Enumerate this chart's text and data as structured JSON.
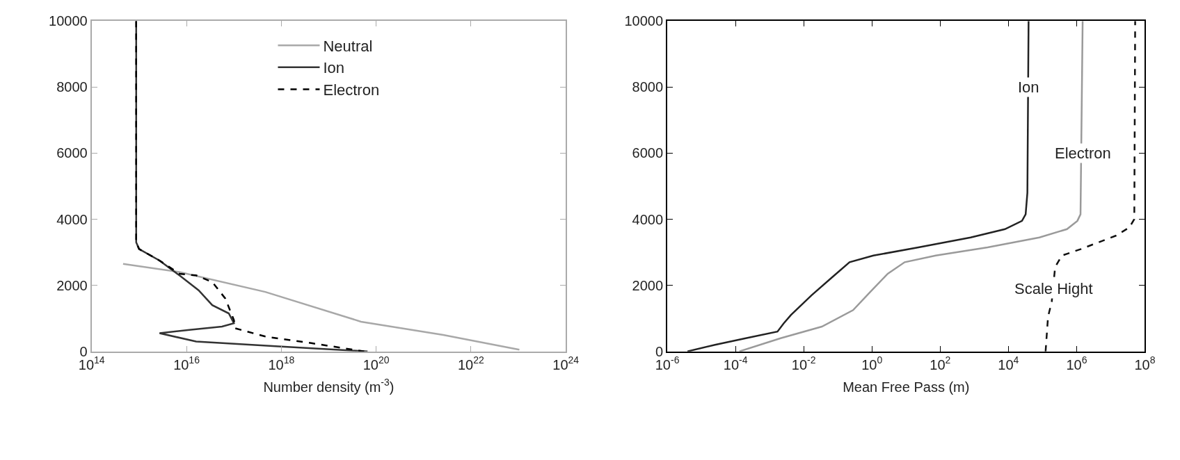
{
  "chart_data": [
    {
      "type": "line",
      "xlabel": "Number density (m$^{-3}$)",
      "log": "x",
      "xlim": [
        100000000000000.0,
        1e+24
      ],
      "ylim": [
        0,
        10000
      ],
      "xticks": [
        {
          "value": 100000000000000.0,
          "label": "10$^{14}$"
        },
        {
          "value": 1e+16,
          "label": "10$^{16}$"
        },
        {
          "value": 1e+18,
          "label": "10$^{18}$"
        },
        {
          "value": 1e+20,
          "label": "10$^{20}$"
        },
        {
          "value": 1e+22,
          "label": "10$^{22}$"
        },
        {
          "value": 1e+24,
          "label": "10$^{24}$"
        }
      ],
      "yticks": [
        0,
        2000,
        4000,
        6000,
        8000,
        10000
      ],
      "grid": false,
      "legend": "top",
      "series": [
        {
          "name": "Neutral",
          "color": "#a8a8a8",
          "line_style": "solid",
          "x": [
            460000000000000.0,
            7100000000000000.0,
            4.6e+17,
            4.8e+19,
            2.6e+21,
            1.05e+23
          ],
          "values": [
            2650,
            2400,
            1800,
            900,
            500,
            50
          ]
        },
        {
          "name": "Ion",
          "color": "#333333",
          "line_style": "solid",
          "x": [
            870000000000000.0,
            870000000000000.0,
            1000000000000000.0,
            2700000000000000.0,
            7100000000000000.0,
            1.8e+16,
            3.5e+16,
            7.8e+16,
            1e+17,
            5.6e+16,
            1.15e+16,
            2700000000000000.0,
            1.6e+16,
            8.7e+17,
            6.6e+19
          ],
          "values": [
            10000,
            3300,
            3100,
            2750,
            2300,
            1850,
            1400,
            1150,
            850,
            750,
            650,
            550,
            300,
            150,
            0
          ]
        },
        {
          "name": "Electron",
          "color": "#000000",
          "line_style": "dashed",
          "x": [
            870000000000000.0,
            870000000000000.0,
            1000000000000000.0,
            2700000000000000.0,
            7100000000000000.0,
            1.6e+16,
            3.5e+16,
            6.6e+16,
            1e+17,
            1.07e+17,
            4.6e+17,
            4.3e+18,
            5.6e+19
          ],
          "values": [
            10000,
            3300,
            3100,
            2750,
            2350,
            2300,
            2100,
            1600,
            950,
            700,
            450,
            250,
            0
          ]
        }
      ]
    },
    {
      "type": "line",
      "xlabel": "Mean Free Pass (m)",
      "log": "x",
      "xlim": [
        1e-06,
        100000000.0
      ],
      "ylim": [
        0,
        10000
      ],
      "xticks": [
        {
          "value": 1e-06,
          "label": "10$^{-6}$"
        },
        {
          "value": 0.0001,
          "label": "10$^{-4}$"
        },
        {
          "value": 0.01,
          "label": "10$^{-2}$"
        },
        {
          "value": 1,
          "label": "10$^{0}$"
        },
        {
          "value": 100,
          "label": "10$^{2}$"
        },
        {
          "value": 10000.0,
          "label": "10$^{4}$"
        },
        {
          "value": 1000000.0,
          "label": "10$^{6}$"
        },
        {
          "value": 100000000.0,
          "label": "10$^{8}$"
        }
      ],
      "yticks": [
        0,
        2000,
        4000,
        6000,
        8000,
        10000
      ],
      "grid": false,
      "legend": false,
      "annotations": [
        {
          "text": "Ion",
          "x": 39000,
          "y": 8000
        },
        {
          "text": "Electron",
          "x": 1500000.0,
          "y": 6000
        },
        {
          "text": "Scale Hight",
          "x": 210000,
          "y": 1900
        }
      ],
      "series": [
        {
          "color": "#222222",
          "line_style": "solid",
          "x": [
            3.9e-06,
            2.5e-05,
            0.0002,
            0.0017,
            0.0026,
            0.0042,
            0.017,
            0.069,
            0.22,
            1.1,
            23,
            780,
            7900,
            25000,
            32000,
            36000,
            39000
          ],
          "values": [
            0,
            200,
            400,
            600,
            850,
            1100,
            1700,
            2250,
            2700,
            2900,
            3150,
            3450,
            3700,
            3950,
            4150,
            4800,
            10000
          ]
        },
        {
          "color": "#9a9a9a",
          "line_style": "solid",
          "x": [
            0.00013,
            0.0021,
            0.034,
            0.28,
            0.89,
            2.9,
            9.1,
            74,
            2450,
            81000,
            520000,
            1050000.0,
            1300000.0,
            1500000.0
          ],
          "values": [
            0,
            400,
            750,
            1250,
            1800,
            2350,
            2700,
            2900,
            3150,
            3450,
            3700,
            3950,
            4150,
            10000
          ]
        },
        {
          "color": "#111111",
          "line_style": "dashed",
          "x": [
            123000,
            145000,
            186000,
            234000,
            370000,
            1350000.0,
            14000000.0,
            35000000.0,
            49000000.0,
            52000000.0
          ],
          "values": [
            0,
            1050,
            1500,
            2550,
            2900,
            3100,
            3500,
            3750,
            4000,
            10000
          ]
        }
      ]
    }
  ]
}
